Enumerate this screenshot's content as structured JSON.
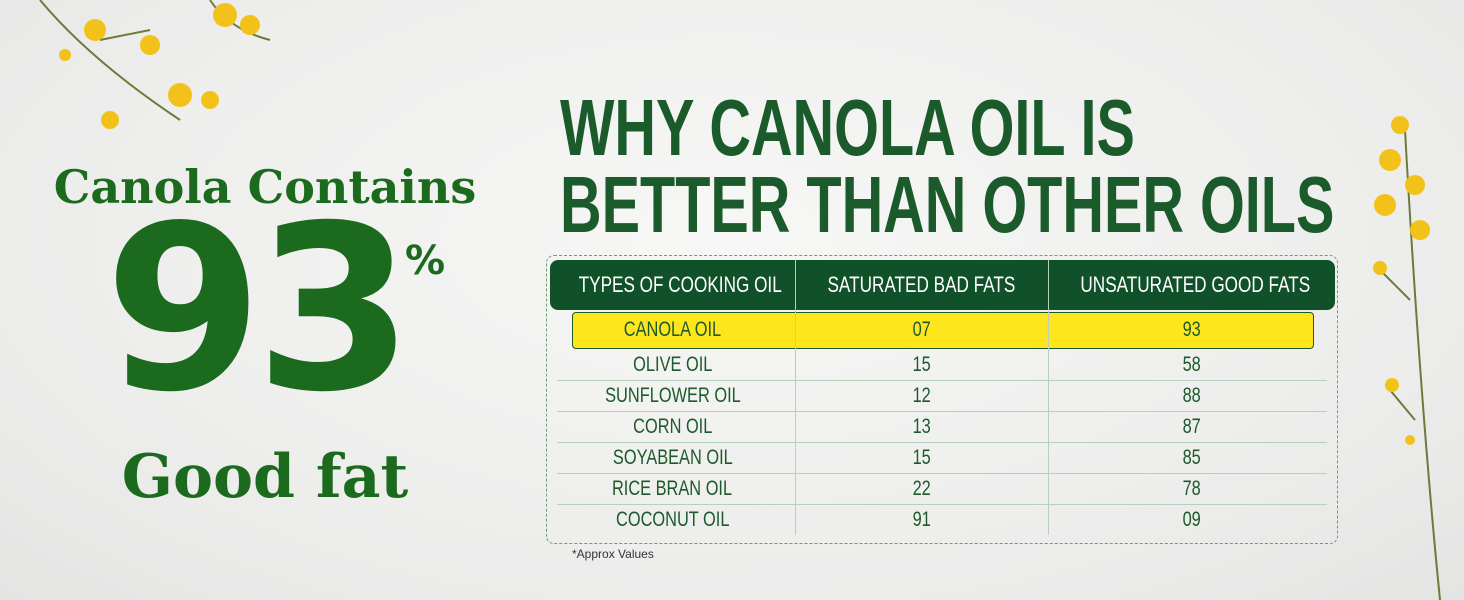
{
  "left_panel": {
    "line1": "Canola Contains",
    "figure": "93",
    "unit": "%",
    "line3": "Good fat"
  },
  "heading": {
    "line1": "WHY CANOLA OIL IS",
    "line2": "BETTER THAN OTHER OILS"
  },
  "table": {
    "columns": [
      "TYPES OF COOKING OIL",
      "SATURATED BAD FATS",
      "UNSATURATED GOOD FATS"
    ],
    "rows": [
      [
        "CANOLA OIL",
        "07",
        "93"
      ],
      [
        "OLIVE OIL",
        "15",
        "58"
      ],
      [
        "SUNFLOWER OIL",
        "12",
        "88"
      ],
      [
        "CORN OIL",
        "13",
        "87"
      ],
      [
        "SOYABEAN OIL",
        "15",
        "85"
      ],
      [
        "RICE BRAN OIL",
        "22",
        "78"
      ],
      [
        "COCONUT OIL",
        "91",
        "09"
      ]
    ]
  },
  "footnote": "*Approx Values"
}
